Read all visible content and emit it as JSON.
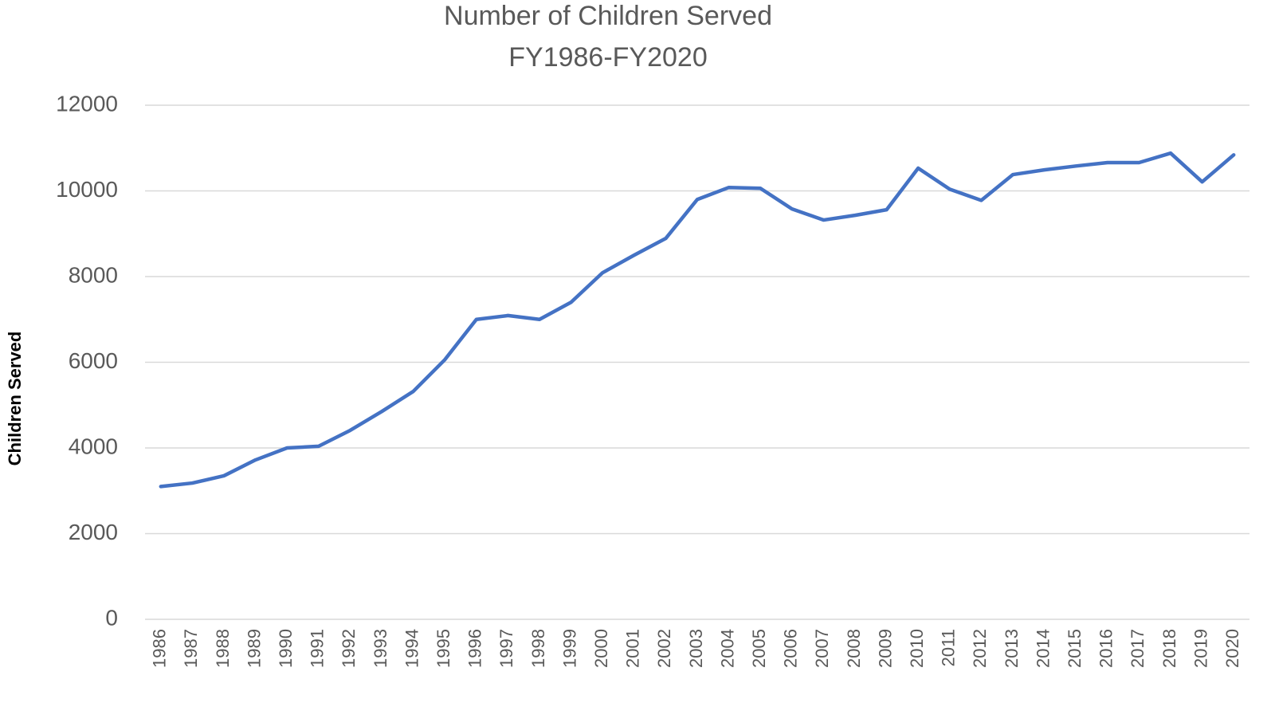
{
  "chart_data": {
    "type": "line",
    "title": "Number of Children Served",
    "subtitle": "FY1986-FY2020",
    "y_label": "Children Served",
    "categories": [
      "1986",
      "1987",
      "1988",
      "1989",
      "1990",
      "1991",
      "1992",
      "1993",
      "1994",
      "1995",
      "1996",
      "1997",
      "1998",
      "1999",
      "2000",
      "2001",
      "2002",
      "2003",
      "2004",
      "2005",
      "2006",
      "2007",
      "2008",
      "2009",
      "2010",
      "2011",
      "2012",
      "2013",
      "2014",
      "2015",
      "2016",
      "2017",
      "2018",
      "2019",
      "2020"
    ],
    "series": [
      {
        "name": "Children Served",
        "color": "#4472c4",
        "values": [
          3100,
          3180,
          3350,
          3720,
          4000,
          4040,
          4410,
          4850,
          5320,
          6060,
          7000,
          7090,
          7000,
          7400,
          8090,
          8500,
          8890,
          9800,
          10080,
          10060,
          9580,
          9320,
          9430,
          9560,
          10530,
          10040,
          9780,
          10380,
          10490,
          10580,
          10660,
          10660,
          10880,
          10210,
          10840
        ]
      }
    ],
    "ylim": [
      0,
      12000
    ],
    "yticks": [
      0,
      2000,
      4000,
      6000,
      8000,
      10000,
      12000
    ],
    "grid": true
  }
}
